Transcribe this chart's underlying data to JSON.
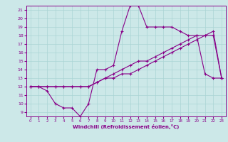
{
  "xlabel": "Windchill (Refroidissement éolien,°C)",
  "ylabel": "",
  "bg_color": "#cce8e8",
  "line_color": "#880088",
  "grid_color": "#aad4d4",
  "xlim": [
    -0.5,
    23.5
  ],
  "ylim": [
    8.5,
    21.5
  ],
  "xticks": [
    0,
    1,
    2,
    3,
    4,
    5,
    6,
    7,
    8,
    9,
    10,
    11,
    12,
    13,
    14,
    15,
    16,
    17,
    18,
    19,
    20,
    21,
    22,
    23
  ],
  "yticks": [
    9,
    10,
    11,
    12,
    13,
    14,
    15,
    16,
    17,
    18,
    19,
    20,
    21
  ],
  "line1": [
    12,
    12,
    11.5,
    10,
    9.5,
    9.5,
    8.5,
    10.0,
    14.0,
    14.0,
    14.5,
    18.5,
    21.5,
    21.5,
    19.0,
    19.0,
    19.0,
    19.0,
    18.5,
    18.0,
    18.0,
    13.5,
    13.0,
    13.0
  ],
  "line2": [
    12,
    12,
    12,
    12,
    12,
    12,
    12,
    12,
    12.5,
    13,
    13,
    13.5,
    13.5,
    14,
    14.5,
    15,
    15.5,
    16,
    16.5,
    17,
    17.5,
    18,
    18.5,
    13
  ],
  "line3": [
    12,
    12,
    12,
    12,
    12,
    12,
    12,
    12,
    12.5,
    13,
    13.5,
    14,
    14.5,
    15,
    15,
    15.5,
    16,
    16.5,
    17,
    17.5,
    18,
    18,
    18,
    13
  ]
}
